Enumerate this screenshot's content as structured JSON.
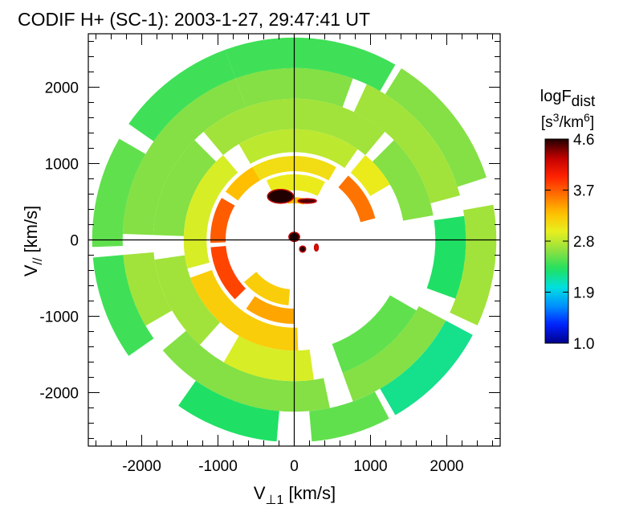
{
  "chart_data": {
    "type": "heatmap",
    "title": "CODIF H+ (SC-1): 2003-1-27, 29:47:41 UT",
    "xlabel": "V",
    "xlabel_sub": "⊥1",
    "xlabel_unit": " [km/s]",
    "ylabel": "V",
    "ylabel_sub": "//",
    "ylabel_unit": " [km/s]",
    "xlim": [
      -2700,
      2700
    ],
    "ylim": [
      -2700,
      2700
    ],
    "xticks": [
      -2000,
      -1000,
      0,
      1000,
      2000
    ],
    "yticks": [
      -2000,
      -1000,
      0,
      1000,
      2000
    ],
    "tick_labels_x": [
      "-2000",
      "-1000",
      "0",
      "1000",
      "2000"
    ],
    "tick_labels_y": [
      "-2000",
      "-1000",
      "0",
      "1000",
      "2000"
    ],
    "crosshair": true,
    "colorbar": {
      "label_main": "logF",
      "label_sub": "dist",
      "unit_open": "[s",
      "unit_sup1": "3",
      "unit_mid": "/km",
      "unit_sup2": "6",
      "unit_close": "]",
      "range": [
        1.0,
        4.6
      ],
      "ticks": [
        4.6,
        3.7,
        2.8,
        1.9,
        1.0
      ],
      "tick_labels": [
        "4.6",
        "3.7",
        "2.8",
        "1.9",
        "1.0"
      ],
      "colormap": [
        "#ffffff",
        "#00008a",
        "#0020ff",
        "#0090ff",
        "#00e0e0",
        "#20e060",
        "#90e040",
        "#e8f020",
        "#ffc000",
        "#ff7000",
        "#ff2000",
        "#c00000",
        "#200000"
      ]
    },
    "rings": [
      {
        "r_in": 2250,
        "r_out": 2650,
        "sectors": [
          [
            -20,
            30,
            2.4
          ],
          [
            32,
            72,
            2.6
          ],
          [
            80,
            115,
            2.7
          ],
          [
            118,
            150,
            2.2
          ],
          [
            152,
            175,
            2.5
          ],
          [
            185,
            215,
            2.3
          ],
          [
            235,
            265,
            2.4
          ],
          [
            268,
            300,
            2.5
          ],
          [
            305,
            340,
            2.4
          ]
        ]
      },
      {
        "r_in": 1850,
        "r_out": 2250,
        "sectors": [
          [
            -20,
            20,
            2.6
          ],
          [
            25,
            75,
            2.7
          ],
          [
            82,
            110,
            2.3
          ],
          [
            118,
            160,
            2.6
          ],
          [
            168,
            230,
            2.6
          ],
          [
            240,
            265,
            2.7
          ],
          [
            272,
            340,
            2.6
          ]
        ]
      },
      {
        "r_in": 1450,
        "r_out": 1850,
        "sectors": [
          [
            -40,
            40,
            2.7
          ],
          [
            45,
            80,
            2.6
          ],
          [
            120,
            160,
            2.5
          ],
          [
            172,
            210,
            2.9
          ],
          [
            222,
            262,
            2.7
          ],
          [
            272,
            315,
            2.6
          ]
        ]
      },
      {
        "r_in": 1150,
        "r_out": 1450,
        "sectors": [
          [
            -30,
            35,
            2.8
          ],
          [
            40,
            60,
            3.0
          ],
          [
            178,
            250,
            3.2
          ],
          [
            255,
            320,
            2.9
          ]
        ]
      },
      {
        "r_in": 900,
        "r_out": 1100,
        "sectors": [
          [
            -35,
            30,
            3.1
          ],
          [
            40,
            75,
            3.6
          ],
          [
            180,
            215,
            3.4
          ],
          [
            225,
            265,
            3.8
          ],
          [
            268,
            300,
            3.7
          ],
          [
            305,
            330,
            3.3
          ]
        ]
      },
      {
        "r_in": 650,
        "r_out": 860,
        "sectors": [
          [
            -25,
            28,
            3.0
          ],
          [
            185,
            230,
            3.2
          ]
        ]
      },
      {
        "r_in": 480,
        "r_out": 560,
        "sectors": [
          [
            -10,
            15,
            3.3
          ]
        ]
      }
    ],
    "core_blobs": [
      {
        "vx": -180,
        "vy": 570,
        "rx": 170,
        "ry": 90,
        "value": 4.6
      },
      {
        "vx": 170,
        "vy": 510,
        "rx": 120,
        "ry": 30,
        "value": 4.5
      },
      {
        "vx": 0,
        "vy": 40,
        "rx": 70,
        "ry": 60,
        "value": 4.6
      },
      {
        "vx": 110,
        "vy": -120,
        "rx": 40,
        "ry": 40,
        "value": 4.6
      },
      {
        "vx": 290,
        "vy": -100,
        "rx": 25,
        "ry": 45,
        "value": 4.1
      }
    ]
  }
}
